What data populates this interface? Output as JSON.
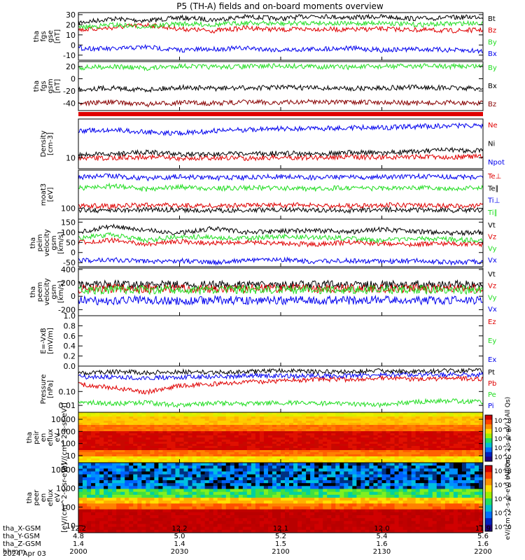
{
  "title": "P5 (TH-A) fields and on-board moments overview",
  "colors": {
    "black": "#000000",
    "red": "#e00000",
    "green": "#22dd22",
    "blue": "#0000ee",
    "darkred": "#880000"
  },
  "colorbars": [
    {
      "label": "eV/(cm^2-s-sr-eV) (All Qs)",
      "ticks": [
        "10^8",
        "10^6",
        "10^4",
        "10^2",
        "10^0"
      ]
    },
    {
      "label": "eV/(cm^2-s-sr-eV) (All Qs)",
      "ticks": [
        "10^8",
        "10^6",
        "10^4",
        "10^2",
        "10^0"
      ]
    }
  ],
  "xaxis": {
    "rows": [
      {
        "label": "tha_X-GSM",
        "values": [
          "12.2",
          "12.2",
          "12.1",
          "12.0",
          "11.9"
        ]
      },
      {
        "label": "tha_Y-GSM",
        "values": [
          "4.8",
          "5.0",
          "5.2",
          "5.4",
          "5.6"
        ]
      },
      {
        "label": "tha_Z-GSM",
        "values": [
          "1.4",
          "1.4",
          "1.5",
          "1.6",
          "1.6"
        ]
      },
      {
        "label": "hhmm",
        "values": [
          "2000",
          "2030",
          "2100",
          "2130",
          "2200"
        ]
      }
    ],
    "date": "2024 Apr 03"
  },
  "chart_data": [
    {
      "type": "line",
      "ylabel": "tha fgs gse [nT]",
      "ylim": [
        -15,
        32
      ],
      "yticks": [
        "30",
        "20",
        "10",
        "0",
        "-10"
      ],
      "series": [
        {
          "name": "Bt",
          "color": "black",
          "values": [
            22,
            26,
            24,
            27,
            25,
            28,
            26,
            29,
            27,
            28,
            26,
            27,
            28
          ]
        },
        {
          "name": "Bz",
          "color": "red",
          "values": [
            15,
            17,
            20,
            16,
            14,
            17,
            15,
            16,
            15,
            16,
            15,
            14,
            15
          ]
        },
        {
          "name": "By",
          "color": "green",
          "values": [
            17,
            20,
            18,
            21,
            20,
            22,
            21,
            22,
            21,
            22,
            20,
            21,
            22
          ]
        },
        {
          "name": "Bx",
          "color": "blue",
          "values": [
            -3,
            -4,
            -2,
            -5,
            -4,
            -3,
            -5,
            -4,
            -3,
            -5,
            -4,
            -5,
            -6
          ]
        }
      ]
    },
    {
      "type": "line",
      "ylabel": "tha fgs gsm [nT]",
      "ylim": [
        -52,
        28
      ],
      "yticks": [
        "20",
        "0",
        "-20",
        "-40"
      ],
      "series": [
        {
          "name": "By",
          "color": "green",
          "values": [
            18,
            20,
            17,
            21,
            19,
            20,
            21,
            20,
            19,
            20,
            21,
            20,
            21
          ]
        },
        {
          "name": "Bx",
          "color": "black",
          "values": [
            -17,
            -15,
            -18,
            -14,
            -16,
            -15,
            -14,
            -15,
            -16,
            -15,
            -14,
            -15,
            -16
          ]
        },
        {
          "name": "Bz",
          "color": "darkred",
          "values": [
            -40,
            -38,
            -42,
            -39,
            -40,
            -38,
            -39,
            -37,
            -39,
            -38,
            -40,
            -39,
            -40
          ]
        }
      ]
    },
    {
      "type": "line",
      "ylabel": "Density [cm-3]",
      "yscale": "log",
      "yticks": [
        "10"
      ],
      "series": [
        {
          "name": "Ne",
          "color": "red",
          "values": [
            9.5,
            9.8,
            10.2,
            9.6,
            9.8,
            9.7,
            10.0,
            9.9,
            10.1,
            10.0,
            10.2,
            10.1,
            10.3
          ]
        },
        {
          "name": "Ni",
          "color": "black",
          "values": [
            10.8,
            11.2,
            12.0,
            11.0,
            11.3,
            11.1,
            11.5,
            11.4,
            11.8,
            11.6,
            12.2,
            12.8,
            12.5
          ]
        },
        {
          "name": "Npot",
          "color": "blue",
          "values": [
            25,
            26,
            24,
            23,
            25,
            26,
            27,
            27,
            28,
            28,
            29,
            30,
            30
          ]
        }
      ]
    },
    {
      "type": "line",
      "ylabel": "moat3 [eV]",
      "yscale": "log",
      "yticks": [
        "100"
      ],
      "series": [
        {
          "name": "Te⊥",
          "color": "red",
          "values": [
            55,
            53,
            56,
            55,
            54,
            55,
            56,
            55,
            54,
            56,
            55,
            54,
            55
          ]
        },
        {
          "name": "Te∥",
          "color": "black",
          "values": [
            46,
            45,
            47,
            46,
            45,
            46,
            47,
            46,
            45,
            47,
            46,
            45,
            46
          ]
        },
        {
          "name": "Ti⊥",
          "color": "blue",
          "values": [
            170,
            180,
            160,
            175,
            165,
            170,
            175,
            168,
            172,
            170,
            178,
            174,
            172
          ]
        },
        {
          "name": "Ti∥",
          "color": "green",
          "values": [
            110,
            120,
            105,
            115,
            108,
            112,
            110,
            106,
            112,
            108,
            111,
            109,
            110
          ]
        }
      ]
    },
    {
      "type": "line",
      "ylabel": "tha peim velocity gsm [km/s]",
      "ylim": [
        -70,
        165
      ],
      "yticks": [
        "150",
        "100",
        "50",
        "0",
        "-50"
      ],
      "series": [
        {
          "name": "Vt",
          "color": "black",
          "values": [
            100,
            130,
            110,
            95,
            120,
            100,
            105,
            110,
            100,
            115,
            105,
            95,
            100
          ]
        },
        {
          "name": "Vz",
          "color": "red",
          "values": [
            50,
            60,
            40,
            55,
            45,
            50,
            45,
            40,
            50,
            45,
            40,
            45,
            40
          ]
        },
        {
          "name": "Vy",
          "color": "green",
          "values": [
            70,
            90,
            60,
            80,
            75,
            70,
            80,
            75,
            70,
            60,
            70,
            65,
            60
          ]
        },
        {
          "name": "Vx",
          "color": "blue",
          "values": [
            -40,
            -35,
            -45,
            -40,
            -50,
            -40,
            -35,
            -45,
            -40,
            -45,
            -40,
            -50,
            -45
          ]
        }
      ]
    },
    {
      "type": "line",
      "ylabel": "tha peem velocity gsm [km/s]",
      "ylim": [
        -290,
        420
      ],
      "yticks": [
        "400",
        "200",
        "0",
        "-200"
      ],
      "series": [
        {
          "name": "Vt",
          "color": "black",
          "values": [
            160,
            180,
            170,
            175,
            165,
            170,
            180,
            175,
            170,
            165,
            175,
            170,
            175
          ]
        },
        {
          "name": "Vz",
          "color": "red",
          "values": [
            110,
            120,
            115,
            120,
            110,
            115,
            120,
            115,
            118,
            112,
            115,
            118,
            115
          ]
        },
        {
          "name": "Vy",
          "color": "green",
          "values": [
            90,
            100,
            95,
            100,
            95,
            98,
            100,
            95,
            98,
            95,
            100,
            97,
            96
          ]
        },
        {
          "name": "Vx",
          "color": "blue",
          "values": [
            -60,
            -70,
            -55,
            -65,
            -60,
            -58,
            -66,
            -60,
            -62,
            -58,
            -64,
            -60,
            -62
          ]
        }
      ]
    },
    {
      "type": "line",
      "ylabel": "E=-VxB [mV/m]",
      "ylim": [
        0.0,
        1.0
      ],
      "yticks": [
        "1.0",
        "0.8",
        "0.6",
        "0.4",
        "0.2",
        "0.0"
      ],
      "series": [
        {
          "name": "Ez",
          "color": "red",
          "values": []
        },
        {
          "name": "Ey",
          "color": "green",
          "values": []
        },
        {
          "name": "Ex",
          "color": "blue",
          "values": []
        }
      ]
    },
    {
      "type": "line",
      "ylabel": "Pressure [nPa]",
      "yscale": "log",
      "ylim": [
        0.01,
        0.3
      ],
      "yticks": [
        "0.10",
        "0.01"
      ],
      "series": [
        {
          "name": "Pt",
          "color": "black",
          "values": [
            0.2,
            0.22,
            0.21,
            0.22,
            0.21,
            0.22,
            0.23,
            0.22,
            0.22,
            0.23,
            0.22,
            0.23,
            0.23
          ]
        },
        {
          "name": "Pb",
          "color": "red",
          "values": [
            0.12,
            0.1,
            0.08,
            0.11,
            0.12,
            0.13,
            0.14,
            0.15,
            0.15,
            0.16,
            0.15,
            0.16,
            0.15
          ]
        },
        {
          "name": "Pe",
          "color": "green",
          "values": [
            0.05,
            0.045,
            0.048,
            0.042,
            0.047,
            0.045,
            0.048,
            0.046,
            0.045,
            0.042,
            0.05,
            0.052,
            0.05
          ]
        },
        {
          "name": "Pi",
          "color": "blue",
          "values": [
            0.17,
            0.17,
            0.16,
            0.17,
            0.17,
            0.18,
            0.18,
            0.18,
            0.18,
            0.19,
            0.19,
            0.19,
            0.19
          ]
        }
      ]
    },
    {
      "type": "heatmap",
      "ylabel": "tha peir en eflux eV [eV/(cm^2-s-sr-eV)]",
      "yscale": "log",
      "ylim": [
        7,
        20000
      ],
      "yticks": [
        "10000",
        "1000",
        "100",
        "10"
      ]
    },
    {
      "type": "heatmap",
      "ylabel": "tha peer en eflux eV [eV/(cm^2-s-sr-eV)]",
      "yscale": "log",
      "ylim": [
        7,
        20000
      ],
      "yticks": [
        "10000",
        "1000",
        "100",
        "10"
      ]
    }
  ]
}
